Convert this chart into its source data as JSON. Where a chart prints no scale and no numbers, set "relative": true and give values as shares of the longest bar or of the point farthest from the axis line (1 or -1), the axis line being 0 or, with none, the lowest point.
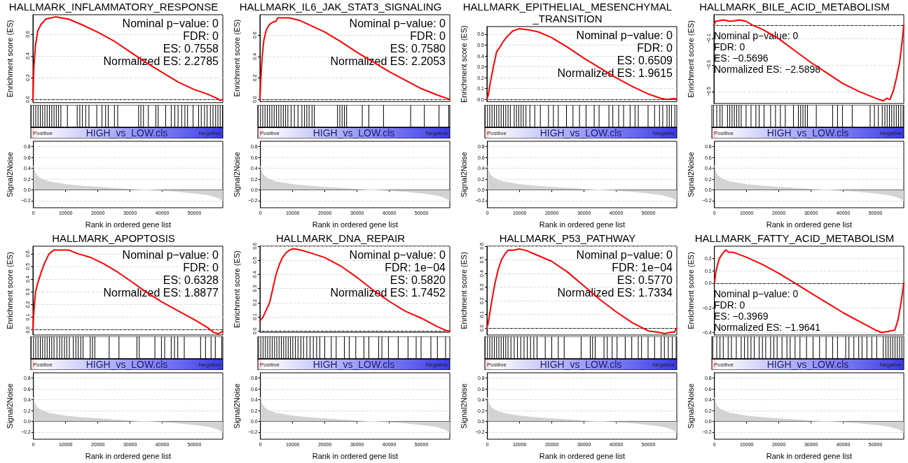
{
  "chart_data": [
    {
      "type": "line",
      "title": "HALLMARK_INFLAMMATORY_RESPONSE",
      "ylabel": "Enrichment score (ES)",
      "x": [
        0,
        300,
        800,
        1500,
        2500,
        4000,
        5500,
        7000,
        9000,
        11000,
        15000,
        20000,
        25000,
        30000,
        35000,
        40000,
        45000,
        50000,
        54000,
        57000,
        58000,
        58800
      ],
      "values": [
        0,
        0.3,
        0.5,
        0.63,
        0.69,
        0.74,
        0.75,
        0.76,
        0.75,
        0.74,
        0.69,
        0.62,
        0.54,
        0.44,
        0.34,
        0.25,
        0.16,
        0.09,
        0.05,
        0.01,
        -0.01,
        0
      ],
      "color": "#ff0000",
      "xlim": [
        0,
        58800
      ],
      "ylim": [
        -0.03,
        0.78
      ],
      "yticks": [
        {
          "value": 0,
          "label": "0.0"
        },
        0.2,
        0.4,
        0.6
      ],
      "tick_labels": "y",
      "grid": "y",
      "marker": "none",
      "line_style": "solid",
      "ref_lines": [
        {
          "axis": "y",
          "value": 0,
          "color": "#808080",
          "line_style": "dashed"
        }
      ],
      "annotations": [
        "Nominal p−value: 0",
        "FDR: 0",
        "ES: 0.7558",
        "Normalized ES: 2.2785"
      ]
    },
    {
      "type": "bar",
      "x": [
        100,
        800,
        1500,
        2200,
        2900,
        3600,
        4300,
        5000,
        5700,
        6400,
        7100,
        7800,
        8500,
        9200,
        11200,
        14200,
        15000,
        15800,
        16800,
        17800,
        20200,
        21800,
        22900,
        23700,
        25600,
        26600,
        33000,
        33700,
        34500,
        36000,
        38300,
        39000,
        41300,
        43000,
        44100,
        45100,
        46200,
        47200,
        48000,
        49700,
        51400,
        52200,
        53200,
        54000,
        55000,
        55800,
        56600,
        57300,
        58000,
        58700
      ],
      "values": [
        1,
        1,
        1,
        1,
        1,
        1,
        1,
        1,
        1,
        1,
        1,
        1,
        1,
        1,
        1,
        1,
        1,
        1,
        1,
        1,
        1,
        1,
        1,
        1,
        1,
        1,
        1,
        1,
        1,
        1,
        1,
        1,
        1,
        1,
        1,
        1,
        1,
        1,
        1,
        1,
        1,
        1,
        1,
        1,
        1,
        1,
        1,
        1,
        1,
        1
      ],
      "color": "#000000",
      "relative": true,
      "xlim": [
        0,
        58800
      ],
      "tick_labels": false,
      "annotations": [
        "Positive",
        "HIGH_vs_LOW.cls",
        "Negative"
      ]
    },
    {
      "type": "area",
      "xlabel": "Rank in ordered gene list",
      "ylabel": "Signal2Noise",
      "x": [
        0,
        200,
        500,
        1000,
        2000,
        3000,
        5000,
        8000,
        10000,
        15000,
        20000,
        25000,
        30000,
        33000,
        36000,
        40000,
        45000,
        50000,
        54000,
        56000,
        57500,
        58800
      ],
      "values": [
        0.45,
        0.38,
        0.32,
        0.27,
        0.22,
        0.19,
        0.15,
        0.12,
        0.1,
        0.07,
        0.05,
        0.03,
        0.01,
        0,
        0,
        -0.01,
        -0.03,
        -0.06,
        -0.09,
        -0.12,
        -0.15,
        -0.2
      ],
      "color": "#d3d3d3",
      "xlim": [
        0,
        58800
      ],
      "xticks": [
        0,
        10000,
        20000,
        30000,
        40000,
        50000
      ],
      "ylim": [
        -0.33,
        0.9
      ],
      "yticks": [
        {
          "value": -0.2,
          "label": "−0.2"
        },
        {
          "value": 0,
          "label": "0.0"
        },
        0.2,
        0.4,
        0.6,
        0.8
      ],
      "grid": "y"
    },
    {
      "type": "line",
      "title": "HALLMARK_IL6_JAK_STAT3_SIGNALING",
      "ylabel": "Enrichment score (ES)",
      "x": [
        0,
        300,
        700,
        1200,
        2000,
        3000,
        4000,
        5000,
        5500,
        7000,
        9000,
        12000,
        15000,
        20000,
        25000,
        30000,
        35000,
        40000,
        45000,
        50000,
        55000,
        58800
      ],
      "values": [
        0,
        0.2,
        0.4,
        0.55,
        0.65,
        0.7,
        0.72,
        0.73,
        0.76,
        0.76,
        0.76,
        0.74,
        0.7,
        0.63,
        0.54,
        0.44,
        0.35,
        0.26,
        0.18,
        0.1,
        0.04,
        0
      ],
      "color": "#ff0000",
      "xlim": [
        0,
        58800
      ],
      "ylim": [
        -0.02,
        0.79
      ],
      "yticks": [
        {
          "value": 0,
          "label": "0.0"
        },
        0.2,
        0.4,
        0.6
      ],
      "tick_labels": "y",
      "grid": "y",
      "marker": "none",
      "line_style": "solid",
      "ref_lines": [
        {
          "axis": "y",
          "value": 0,
          "color": "#808080",
          "line_style": "dashed"
        }
      ],
      "annotations": [
        "Nominal p−value: 0",
        "FDR: 0",
        "ES: 0.7580",
        "Normalized ES: 2.2053"
      ]
    },
    {
      "type": "bar",
      "x": [
        100,
        800,
        1500,
        2200,
        2900,
        3600,
        4300,
        5000,
        5700,
        6400,
        7100,
        7800,
        8500,
        9200,
        10200,
        11200,
        12300,
        13500,
        14300,
        15000,
        15700,
        16600,
        17300,
        24400,
        25100,
        25800,
        26500,
        27200,
        32000,
        34000,
        38500,
        46800,
        51000,
        55500,
        58500
      ],
      "values": [
        1,
        1,
        1,
        1,
        1,
        1,
        1,
        1,
        1,
        1,
        1,
        1,
        1,
        1,
        1,
        1,
        1,
        1,
        1,
        1,
        1,
        1,
        1,
        1,
        1,
        1,
        1,
        1,
        1,
        1,
        1,
        1,
        1,
        1,
        1
      ],
      "color": "#000000",
      "relative": true,
      "xlim": [
        0,
        58800
      ],
      "tick_labels": false,
      "annotations": [
        "Positive",
        "HIGH_vs_LOW.cls",
        "Negative"
      ]
    },
    {
      "type": "area",
      "xlabel": "Rank in ordered gene list",
      "ylabel": "Signal2Noise",
      "x": [
        0,
        200,
        500,
        1000,
        2000,
        3000,
        5000,
        8000,
        10000,
        15000,
        20000,
        25000,
        30000,
        33000,
        36000,
        40000,
        45000,
        50000,
        54000,
        56000,
        57500,
        58800
      ],
      "values": [
        0.45,
        0.38,
        0.32,
        0.27,
        0.22,
        0.19,
        0.15,
        0.12,
        0.1,
        0.07,
        0.05,
        0.03,
        0.01,
        0,
        0,
        -0.01,
        -0.03,
        -0.06,
        -0.09,
        -0.12,
        -0.15,
        -0.2
      ],
      "color": "#d3d3d3",
      "xlim": [
        0,
        58800
      ],
      "xticks": [
        0,
        10000,
        20000,
        30000,
        40000,
        50000
      ],
      "ylim": [
        -0.33,
        0.9
      ],
      "yticks": [
        {
          "value": -0.2,
          "label": "−0.2"
        },
        {
          "value": 0,
          "label": "0.0"
        },
        0.2,
        0.4,
        0.6,
        0.8
      ],
      "grid": "y"
    },
    {
      "type": "line",
      "title": "HALLMARK_EPITHELIAL_MESENCHYMAL_TRANSITION",
      "ylabel": "Enrichment score (ES)",
      "x": [
        0,
        500,
        1000,
        2000,
        3000,
        4000,
        5000,
        6000,
        7000,
        8000,
        10000,
        13000,
        16000,
        20000,
        25000,
        30000,
        35000,
        40000,
        45000,
        50000,
        54000,
        56000,
        58000,
        58800
      ],
      "values": [
        0,
        0.05,
        0.15,
        0.3,
        0.44,
        0.48,
        0.53,
        0.57,
        0.6,
        0.63,
        0.65,
        0.64,
        0.62,
        0.57,
        0.48,
        0.38,
        0.29,
        0.2,
        0.12,
        0.05,
        0.01,
        0,
        0.01,
        0
      ],
      "color": "#ff0000",
      "xlim": [
        0,
        58800
      ],
      "ylim": [
        -0.02,
        0.67
      ],
      "yticks": [
        {
          "value": 0,
          "label": "0.0"
        },
        0.1,
        0.2,
        0.3,
        0.4,
        0.5,
        0.6
      ],
      "tick_labels": "y",
      "grid": "y",
      "marker": "none",
      "line_style": "solid",
      "ref_lines": [
        {
          "axis": "y",
          "value": 0,
          "color": "#808080",
          "line_style": "dashed"
        }
      ],
      "annotations": [
        "Nominal p−value: 0",
        "FDR: 0",
        "ES: 0.6509",
        "Normalized ES: 1.9615"
      ]
    },
    {
      "type": "bar",
      "x": [
        100,
        800,
        1500,
        2200,
        2900,
        3600,
        4300,
        5000,
        5700,
        6400,
        7100,
        7800,
        9000,
        9700,
        10400,
        11100,
        11800,
        12600,
        13800,
        15300,
        17000,
        19500,
        21000,
        22500,
        25000,
        27000,
        29000,
        31000,
        33500,
        35000,
        38000,
        39200,
        41000,
        42500,
        44500,
        46000,
        47000,
        50000,
        52000,
        53500,
        54500,
        55800,
        56500,
        57200,
        58200
      ],
      "values": [
        1,
        1,
        1,
        1,
        1,
        1,
        1,
        1,
        1,
        1,
        1,
        1,
        1,
        1,
        1,
        1,
        1,
        1,
        1,
        1,
        1,
        1,
        1,
        1,
        1,
        1,
        1,
        1,
        1,
        1,
        1,
        1,
        1,
        1,
        1,
        1,
        1,
        1,
        1,
        1,
        1,
        1,
        1,
        1,
        1
      ],
      "color": "#000000",
      "relative": true,
      "xlim": [
        0,
        58800
      ],
      "tick_labels": false,
      "annotations": [
        "Positive",
        "HIGH_vs_LOW.cls",
        "Negative"
      ]
    },
    {
      "type": "area",
      "xlabel": "Rank in ordered gene list",
      "ylabel": "Signal2Noise",
      "x": [
        0,
        200,
        500,
        1000,
        2000,
        3000,
        5000,
        8000,
        10000,
        15000,
        20000,
        25000,
        30000,
        33000,
        36000,
        40000,
        45000,
        50000,
        54000,
        56000,
        57500,
        58800
      ],
      "values": [
        0.45,
        0.38,
        0.32,
        0.27,
        0.22,
        0.19,
        0.15,
        0.12,
        0.1,
        0.07,
        0.05,
        0.03,
        0.01,
        0,
        0,
        -0.01,
        -0.03,
        -0.06,
        -0.09,
        -0.12,
        -0.15,
        -0.2
      ],
      "color": "#d3d3d3",
      "xlim": [
        0,
        58800
      ],
      "xticks": [
        0,
        10000,
        20000,
        30000,
        40000,
        50000
      ],
      "ylim": [
        -0.33,
        0.9
      ],
      "yticks": [
        {
          "value": -0.2,
          "label": "−0.2"
        },
        {
          "value": 0,
          "label": "0.0"
        },
        0.2,
        0.4,
        0.6,
        0.8
      ],
      "grid": "y"
    },
    {
      "type": "line",
      "title": "HALLMARK_BILE_ACID_METABOLISM",
      "ylabel": "Enrichment score (ES)",
      "x": [
        0,
        500,
        3000,
        5000,
        8000,
        10000,
        12000,
        15000,
        20000,
        25000,
        30000,
        35000,
        40000,
        45000,
        50000,
        52500,
        53500,
        54500,
        55500,
        56500,
        57500,
        58300,
        58800
      ],
      "values": [
        0,
        0.03,
        0.04,
        0.03,
        0.04,
        0.03,
        0,
        -0.03,
        -0.1,
        -0.19,
        -0.28,
        -0.36,
        -0.44,
        -0.5,
        -0.55,
        -0.57,
        -0.55,
        -0.56,
        -0.5,
        -0.4,
        -0.28,
        -0.12,
        0
      ],
      "color": "#ff0000",
      "xlim": [
        0,
        58800
      ],
      "ylim": [
        -0.59,
        0.08
      ],
      "yticks": [
        {
          "value": -0.5,
          "label": "−0.5"
        },
        {
          "value": -0.3,
          "label": "−0.3"
        },
        {
          "value": -0.1,
          "label": "−0.1"
        }
      ],
      "tick_labels": "y",
      "grid": "y",
      "marker": "none",
      "line_style": "solid",
      "ref_lines": [
        {
          "axis": "y",
          "value": 0,
          "color": "#808080",
          "line_style": "dashed"
        }
      ],
      "annotations": [
        "Nominal p−value: 0",
        "FDR: 0",
        "ES: −0.5696",
        "Normalized ES: −2.5898"
      ]
    },
    {
      "type": "bar",
      "x": [
        500,
        1500,
        2500,
        3200,
        4800,
        5500,
        6200,
        6900,
        7600,
        8300,
        9000,
        10500,
        12000,
        13500,
        14500,
        16000,
        18000,
        19500,
        21000,
        22500,
        25000,
        26500,
        27200,
        27900,
        28600,
        29300,
        32000,
        37000,
        38500,
        40000,
        43000,
        48500,
        49800,
        51000,
        52200,
        53000,
        53700,
        54400,
        55100,
        55800,
        56500,
        57200,
        57900,
        58600
      ],
      "values": [
        1,
        1,
        1,
        1,
        1,
        1,
        1,
        1,
        1,
        1,
        1,
        1,
        1,
        1,
        1,
        1,
        1,
        1,
        1,
        1,
        1,
        1,
        1,
        1,
        1,
        1,
        1,
        1,
        1,
        1,
        1,
        1,
        1,
        1,
        1,
        1,
        1,
        1,
        1,
        1,
        1,
        1,
        1,
        1
      ],
      "color": "#000000",
      "relative": true,
      "xlim": [
        0,
        58800
      ],
      "tick_labels": false,
      "annotations": [
        "Positive",
        "HIGH_vs_LOW.cls",
        "Negative"
      ]
    },
    {
      "type": "area",
      "xlabel": "Rank in ordered gene list",
      "ylabel": "Signal2Noise",
      "x": [
        0,
        200,
        500,
        1000,
        2000,
        3000,
        5000,
        8000,
        10000,
        15000,
        20000,
        25000,
        30000,
        33000,
        36000,
        40000,
        45000,
        50000,
        54000,
        56000,
        57500,
        58800
      ],
      "values": [
        0.45,
        0.38,
        0.32,
        0.27,
        0.22,
        0.19,
        0.15,
        0.12,
        0.1,
        0.07,
        0.05,
        0.03,
        0.01,
        0,
        0,
        -0.01,
        -0.03,
        -0.06,
        -0.09,
        -0.12,
        -0.15,
        -0.2
      ],
      "color": "#d3d3d3",
      "xlim": [
        0,
        58800
      ],
      "xticks": [
        0,
        10000,
        20000,
        30000,
        40000,
        50000
      ],
      "ylim": [
        -0.33,
        0.9
      ],
      "yticks": [
        {
          "value": -0.2,
          "label": "−0.2"
        },
        {
          "value": 0,
          "label": "0.0"
        },
        0.2,
        0.4,
        0.6,
        0.8
      ],
      "grid": "y"
    },
    {
      "type": "line",
      "title": "HALLMARK_APOPTOSIS",
      "ylabel": "Enrichment score (ES)",
      "x": [
        0,
        300,
        800,
        1500,
        2500,
        3500,
        5000,
        6500,
        8000,
        11000,
        14000,
        18000,
        22000,
        26000,
        30000,
        35000,
        40000,
        45000,
        50000,
        54000,
        56000,
        57500,
        58800
      ],
      "values": [
        0,
        0.15,
        0.3,
        0.37,
        0.45,
        0.52,
        0.6,
        0.63,
        0.63,
        0.63,
        0.6,
        0.57,
        0.52,
        0.46,
        0.39,
        0.3,
        0.22,
        0.15,
        0.08,
        0.02,
        -0.02,
        -0.03,
        -0.01
      ],
      "color": "#ff0000",
      "xlim": [
        0,
        58800
      ],
      "ylim": [
        -0.04,
        0.66
      ],
      "yticks": [
        {
          "value": 0,
          "label": "0.0"
        },
        0.1,
        0.2,
        0.3,
        0.4,
        0.5,
        0.6
      ],
      "tick_labels": "y",
      "grid": "y",
      "marker": "none",
      "line_style": "solid",
      "ref_lines": [
        {
          "axis": "y",
          "value": 0,
          "color": "#808080",
          "line_style": "dashed"
        }
      ],
      "annotations": [
        "Nominal p−value: 0",
        "FDR: 0",
        "ES: 0.6328",
        "Normalized ES: 1.8877"
      ]
    },
    {
      "type": "bar",
      "x": [
        100,
        800,
        1500,
        2200,
        2900,
        3600,
        4300,
        5000,
        5700,
        6400,
        7100,
        8000,
        8800,
        9500,
        10300,
        11000,
        11800,
        13000,
        13800,
        14500,
        15300,
        16000,
        18200,
        18900,
        19600,
        24000,
        27000,
        32500,
        33200,
        38000,
        40000,
        41000,
        43000,
        44000,
        45000,
        47000,
        52000,
        53500,
        55200,
        56500,
        58500
      ],
      "values": [
        1,
        1,
        1,
        1,
        1,
        1,
        1,
        1,
        1,
        1,
        1,
        1,
        1,
        1,
        1,
        1,
        1,
        1,
        1,
        1,
        1,
        1,
        1,
        1,
        1,
        1,
        1,
        1,
        1,
        1,
        1,
        1,
        1,
        1,
        1,
        1,
        1,
        1,
        1,
        1,
        1
      ],
      "color": "#000000",
      "relative": true,
      "xlim": [
        0,
        58800
      ],
      "tick_labels": false,
      "annotations": [
        "Positive",
        "HIGH_vs_LOW.cls",
        "Negative"
      ]
    },
    {
      "type": "area",
      "xlabel": "Rank in ordered gene list",
      "ylabel": "Signal2Noise",
      "x": [
        0,
        200,
        500,
        1000,
        2000,
        3000,
        5000,
        8000,
        10000,
        15000,
        20000,
        25000,
        30000,
        33000,
        36000,
        40000,
        45000,
        50000,
        54000,
        56000,
        57500,
        58800
      ],
      "values": [
        0.45,
        0.38,
        0.32,
        0.27,
        0.22,
        0.19,
        0.15,
        0.12,
        0.1,
        0.07,
        0.05,
        0.03,
        0.01,
        0,
        0,
        -0.01,
        -0.03,
        -0.06,
        -0.09,
        -0.12,
        -0.15,
        -0.2
      ],
      "color": "#d3d3d3",
      "xlim": [
        0,
        58800
      ],
      "xticks": [
        0,
        10000,
        20000,
        30000,
        40000,
        50000
      ],
      "ylim": [
        -0.33,
        0.9
      ],
      "yticks": [
        {
          "value": -0.2,
          "label": "−0.2"
        },
        {
          "value": 0,
          "label": "0.0"
        },
        0.2,
        0.4,
        0.6,
        0.8
      ],
      "grid": "y"
    },
    {
      "type": "line",
      "title": "HALLMARK_DNA_REPAIR",
      "ylabel": "Enrichment score (ES)",
      "x": [
        0,
        1000,
        2000,
        3000,
        4000,
        5000,
        6000,
        7000,
        8000,
        9000,
        10000,
        11000,
        13000,
        16000,
        20000,
        25000,
        30000,
        35000,
        40000,
        45000,
        50000,
        55000,
        58000,
        58800
      ],
      "values": [
        0.07,
        0.1,
        0.15,
        0.2,
        0.3,
        0.4,
        0.47,
        0.52,
        0.55,
        0.57,
        0.58,
        0.58,
        0.57,
        0.55,
        0.52,
        0.46,
        0.38,
        0.29,
        0.21,
        0.14,
        0.09,
        0.03,
        0,
        0
      ],
      "color": "#ff0000",
      "xlim": [
        0,
        58800
      ],
      "ylim": [
        -0.01,
        0.6
      ],
      "yticks": [
        {
          "value": 0,
          "label": "0.0"
        },
        0.1,
        0.2,
        0.3,
        0.4,
        0.5,
        0.6
      ],
      "tick_labels": "y",
      "grid": "y",
      "marker": "none",
      "line_style": "solid",
      "ref_lines": [
        {
          "axis": "y",
          "value": 0,
          "color": "#808080",
          "line_style": "dashed"
        }
      ],
      "annotations": [
        "Nominal p−value: 0",
        "FDR: 1e−04",
        "ES: 0.5820",
        "Normalized ES: 1.7452"
      ]
    },
    {
      "type": "bar",
      "x": [
        200,
        900,
        1600,
        2300,
        3000,
        3700,
        4400,
        5100,
        5800,
        6500,
        7200,
        7900,
        8600,
        9300,
        10000,
        10700,
        11500,
        12300,
        13200,
        14000,
        15000,
        16000,
        17000,
        18000,
        19000,
        20500,
        22500,
        24000,
        26500,
        28000,
        30000,
        32500,
        34000,
        37000,
        38000,
        40000,
        43000,
        46000,
        48500,
        50000,
        53000,
        55000,
        57500
      ],
      "values": [
        1,
        1,
        1,
        1,
        1,
        1,
        1,
        1,
        1,
        1,
        1,
        1,
        1,
        1,
        1,
        1,
        1,
        1,
        1,
        1,
        1,
        1,
        1,
        1,
        1,
        1,
        1,
        1,
        1,
        1,
        1,
        1,
        1,
        1,
        1,
        1,
        1,
        1,
        1,
        1,
        1,
        1,
        1
      ],
      "color": "#000000",
      "relative": true,
      "xlim": [
        0,
        58800
      ],
      "tick_labels": false,
      "annotations": [
        "Positive",
        "HIGH_vs_LOW.cls",
        "Negative"
      ]
    },
    {
      "type": "area",
      "xlabel": "Rank in ordered gene list",
      "ylabel": "Signal2Noise",
      "x": [
        0,
        200,
        500,
        1000,
        2000,
        3000,
        5000,
        8000,
        10000,
        15000,
        20000,
        25000,
        30000,
        33000,
        36000,
        40000,
        45000,
        50000,
        54000,
        56000,
        57500,
        58800
      ],
      "values": [
        0.45,
        0.38,
        0.32,
        0.27,
        0.22,
        0.19,
        0.15,
        0.12,
        0.1,
        0.07,
        0.05,
        0.03,
        0.01,
        0,
        0,
        -0.01,
        -0.03,
        -0.06,
        -0.09,
        -0.12,
        -0.15,
        -0.2
      ],
      "color": "#d3d3d3",
      "xlim": [
        0,
        58800
      ],
      "xticks": [
        0,
        10000,
        20000,
        30000,
        40000,
        50000
      ],
      "ylim": [
        -0.33,
        0.9
      ],
      "yticks": [
        {
          "value": -0.2,
          "label": "−0.2"
        },
        {
          "value": 0,
          "label": "0.0"
        },
        0.2,
        0.4,
        0.6,
        0.8
      ],
      "grid": "y"
    },
    {
      "type": "line",
      "title": "HALLMARK_P53_PATHWAY",
      "ylabel": "Enrichment score (ES)",
      "x": [
        0,
        500,
        1500,
        2500,
        3500,
        4500,
        5500,
        6500,
        8000,
        10000,
        12000,
        15000,
        20000,
        25000,
        30000,
        35000,
        40000,
        45000,
        50000,
        53000,
        55000,
        57000,
        58000,
        58800
      ],
      "values": [
        0,
        0.05,
        0.2,
        0.33,
        0.43,
        0.5,
        0.54,
        0.57,
        0.57,
        0.58,
        0.57,
        0.54,
        0.49,
        0.41,
        0.31,
        0.21,
        0.12,
        0.04,
        -0.02,
        -0.03,
        -0.04,
        -0.03,
        -0.03,
        0
      ],
      "color": "#ff0000",
      "xlim": [
        0,
        58800
      ],
      "ylim": [
        -0.05,
        0.6
      ],
      "yticks": [
        {
          "value": 0,
          "label": "0.0"
        },
        0.1,
        0.2,
        0.3,
        0.4,
        0.5,
        0.6
      ],
      "tick_labels": "y",
      "grid": "y",
      "marker": "none",
      "line_style": "solid",
      "ref_lines": [
        {
          "axis": "y",
          "value": 0,
          "color": "#808080",
          "line_style": "dashed"
        }
      ],
      "annotations": [
        "Nominal p−value: 0",
        "FDR: 1e−04",
        "ES: 0.5770",
        "Normalized ES: 1.7334"
      ]
    },
    {
      "type": "bar",
      "x": [
        100,
        800,
        1500,
        2200,
        2900,
        3600,
        4300,
        5000,
        5700,
        6400,
        7100,
        8000,
        9000,
        10000,
        11000,
        12000,
        13000,
        14000,
        15000,
        16000,
        18500,
        20500,
        22500,
        24300,
        29500,
        32300,
        33000,
        33800,
        36500,
        37500,
        39000,
        40500,
        43000,
        45000,
        47000,
        48000,
        50000,
        52000,
        54000,
        55000,
        56200,
        57400,
        58600
      ],
      "values": [
        1,
        1,
        1,
        1,
        1,
        1,
        1,
        1,
        1,
        1,
        1,
        1,
        1,
        1,
        1,
        1,
        1,
        1,
        1,
        1,
        1,
        1,
        1,
        1,
        1,
        1,
        1,
        1,
        1,
        1,
        1,
        1,
        1,
        1,
        1,
        1,
        1,
        1,
        1,
        1,
        1,
        1,
        1
      ],
      "color": "#000000",
      "relative": true,
      "xlim": [
        0,
        58800
      ],
      "tick_labels": false,
      "annotations": [
        "Positive",
        "HIGH_vs_LOW.cls",
        "Negative"
      ]
    },
    {
      "type": "area",
      "xlabel": "Rank in ordered gene list",
      "ylabel": "Signal2Noise",
      "x": [
        0,
        200,
        500,
        1000,
        2000,
        3000,
        5000,
        8000,
        10000,
        15000,
        20000,
        25000,
        30000,
        33000,
        36000,
        40000,
        45000,
        50000,
        54000,
        56000,
        57500,
        58800
      ],
      "values": [
        0.45,
        0.38,
        0.32,
        0.27,
        0.22,
        0.19,
        0.15,
        0.12,
        0.1,
        0.07,
        0.05,
        0.03,
        0.01,
        0,
        0,
        -0.01,
        -0.03,
        -0.06,
        -0.09,
        -0.12,
        -0.15,
        -0.2
      ],
      "color": "#d3d3d3",
      "xlim": [
        0,
        58800
      ],
      "xticks": [
        0,
        10000,
        20000,
        30000,
        40000,
        50000
      ],
      "ylim": [
        -0.33,
        0.9
      ],
      "yticks": [
        {
          "value": -0.2,
          "label": "−0.2"
        },
        {
          "value": 0,
          "label": "0.0"
        },
        0.2,
        0.4,
        0.6,
        0.8
      ],
      "grid": "y"
    },
    {
      "type": "line",
      "title": "HALLMARK_FATTY_ACID_METABOLISM",
      "ylabel": "Enrichment score (ES)",
      "x": [
        0,
        500,
        1500,
        2500,
        3500,
        4500,
        6000,
        8000,
        10000,
        15000,
        20000,
        25000,
        30000,
        35000,
        40000,
        45000,
        50000,
        52000,
        54000,
        56000,
        57000,
        58000,
        58800
      ],
      "values": [
        0,
        0.1,
        0.2,
        0.24,
        0.27,
        0.25,
        0.25,
        0.23,
        0.21,
        0.15,
        0.08,
        0,
        -0.08,
        -0.16,
        -0.24,
        -0.31,
        -0.38,
        -0.4,
        -0.39,
        -0.38,
        -0.3,
        -0.15,
        0
      ],
      "color": "#ff0000",
      "xlim": [
        0,
        58800
      ],
      "ylim": [
        -0.42,
        0.3
      ],
      "yticks": [
        {
          "value": -0.4,
          "label": "−0.4"
        },
        {
          "value": -0.2,
          "label": "−0.2"
        },
        {
          "value": 0,
          "label": "0.0"
        },
        0.1,
        0.2
      ],
      "tick_labels": "y",
      "grid": "y",
      "marker": "none",
      "line_style": "solid",
      "ref_lines": [
        {
          "axis": "y",
          "value": 0,
          "color": "#808080",
          "line_style": "dashed"
        }
      ],
      "annotations": [
        "Nominal p−value: 0",
        "FDR: 0",
        "ES: −0.3969",
        "Normalized ES: −1.9641"
      ]
    },
    {
      "type": "bar",
      "x": [
        300,
        1500,
        2500,
        3500,
        5000,
        6000,
        7500,
        9000,
        10000,
        11000,
        12000,
        13000,
        14500,
        15500,
        16500,
        18000,
        19000,
        20000,
        21500,
        23000,
        24000,
        25500,
        27000,
        29000,
        31000,
        33000,
        35000,
        37000,
        38500,
        41000,
        42000,
        43500,
        45000,
        46000,
        47500,
        49000,
        50500,
        52500,
        53300,
        54000,
        54700,
        55400,
        56100,
        56800,
        57500,
        58200
      ],
      "values": [
        1,
        1,
        1,
        1,
        1,
        1,
        1,
        1,
        1,
        1,
        1,
        1,
        1,
        1,
        1,
        1,
        1,
        1,
        1,
        1,
        1,
        1,
        1,
        1,
        1,
        1,
        1,
        1,
        1,
        1,
        1,
        1,
        1,
        1,
        1,
        1,
        1,
        1,
        1,
        1,
        1,
        1,
        1,
        1,
        1,
        1
      ],
      "color": "#000000",
      "relative": true,
      "xlim": [
        0,
        58800
      ],
      "tick_labels": false,
      "annotations": [
        "Positive",
        "HIGH_vs_LOW.cls",
        "Negative"
      ]
    },
    {
      "type": "area",
      "xlabel": "Rank in ordered gene list",
      "ylabel": "Signal2Noise",
      "x": [
        0,
        200,
        500,
        1000,
        2000,
        3000,
        5000,
        8000,
        10000,
        15000,
        20000,
        25000,
        30000,
        33000,
        36000,
        40000,
        45000,
        50000,
        54000,
        56000,
        57500,
        58800
      ],
      "values": [
        0.45,
        0.38,
        0.32,
        0.27,
        0.22,
        0.19,
        0.15,
        0.12,
        0.1,
        0.07,
        0.05,
        0.03,
        0.01,
        0,
        0,
        -0.01,
        -0.03,
        -0.06,
        -0.09,
        -0.12,
        -0.15,
        -0.2
      ],
      "color": "#d3d3d3",
      "xlim": [
        0,
        58800
      ],
      "xticks": [
        0,
        10000,
        20000,
        30000,
        40000,
        50000
      ],
      "ylim": [
        -0.33,
        0.9
      ],
      "yticks": [
        {
          "value": -0.2,
          "label": "−0.2"
        },
        {
          "value": 0,
          "label": "0.0"
        },
        0.2,
        0.4,
        0.6,
        0.8
      ],
      "grid": "y"
    }
  ]
}
